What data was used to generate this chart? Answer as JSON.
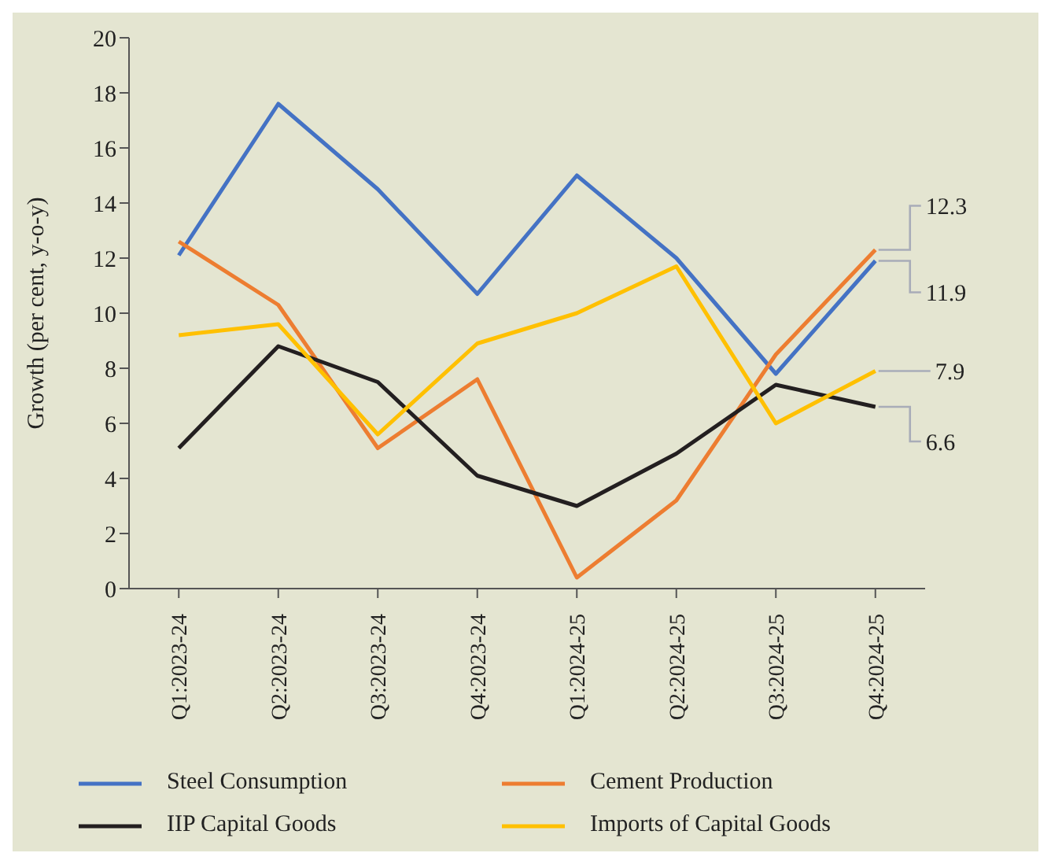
{
  "chart_data": {
    "type": "line",
    "ylabel": "Growth (per cent, y-o-y)",
    "categories": [
      "Q1:2023-24",
      "Q2:2023-24",
      "Q3:2023-24",
      "Q4:2023-24",
      "Q1:2024-25",
      "Q2:2024-25",
      "Q3:2024-25",
      "Q4:2024-25"
    ],
    "series": [
      {
        "name": "Steel Consumption",
        "color": "#4472c4",
        "values": [
          12.1,
          17.6,
          14.5,
          10.7,
          15.0,
          12.0,
          7.8,
          11.9
        ]
      },
      {
        "name": "Cement Production",
        "color": "#ed7d31",
        "values": [
          12.6,
          10.3,
          5.1,
          7.6,
          0.4,
          3.2,
          8.5,
          12.3
        ]
      },
      {
        "name": "IIP Capital Goods",
        "color": "#231f20",
        "values": [
          5.1,
          8.8,
          7.5,
          4.1,
          3.0,
          4.9,
          7.4,
          6.6
        ]
      },
      {
        "name": "Imports of Capital Goods",
        "color": "#ffc000",
        "values": [
          9.2,
          9.6,
          5.6,
          8.9,
          10.0,
          11.7,
          6.0,
          7.9
        ]
      }
    ],
    "ylim": [
      0,
      20
    ],
    "yticks": [
      0,
      2,
      4,
      6,
      8,
      10,
      12,
      14,
      16,
      18,
      20
    ],
    "grid": false,
    "legend": "bottom",
    "marker": "none",
    "line_style": "solid",
    "annotations": [
      {
        "text": "12.3",
        "x": "Q4:2024-25",
        "y": 12.3
      },
      {
        "text": "11.9",
        "x": "Q4:2024-25",
        "y": 11.9
      },
      {
        "text": "7.9",
        "x": "Q4:2024-25",
        "y": 7.9
      },
      {
        "text": "6.6",
        "x": "Q4:2024-25",
        "y": 6.6
      }
    ]
  }
}
